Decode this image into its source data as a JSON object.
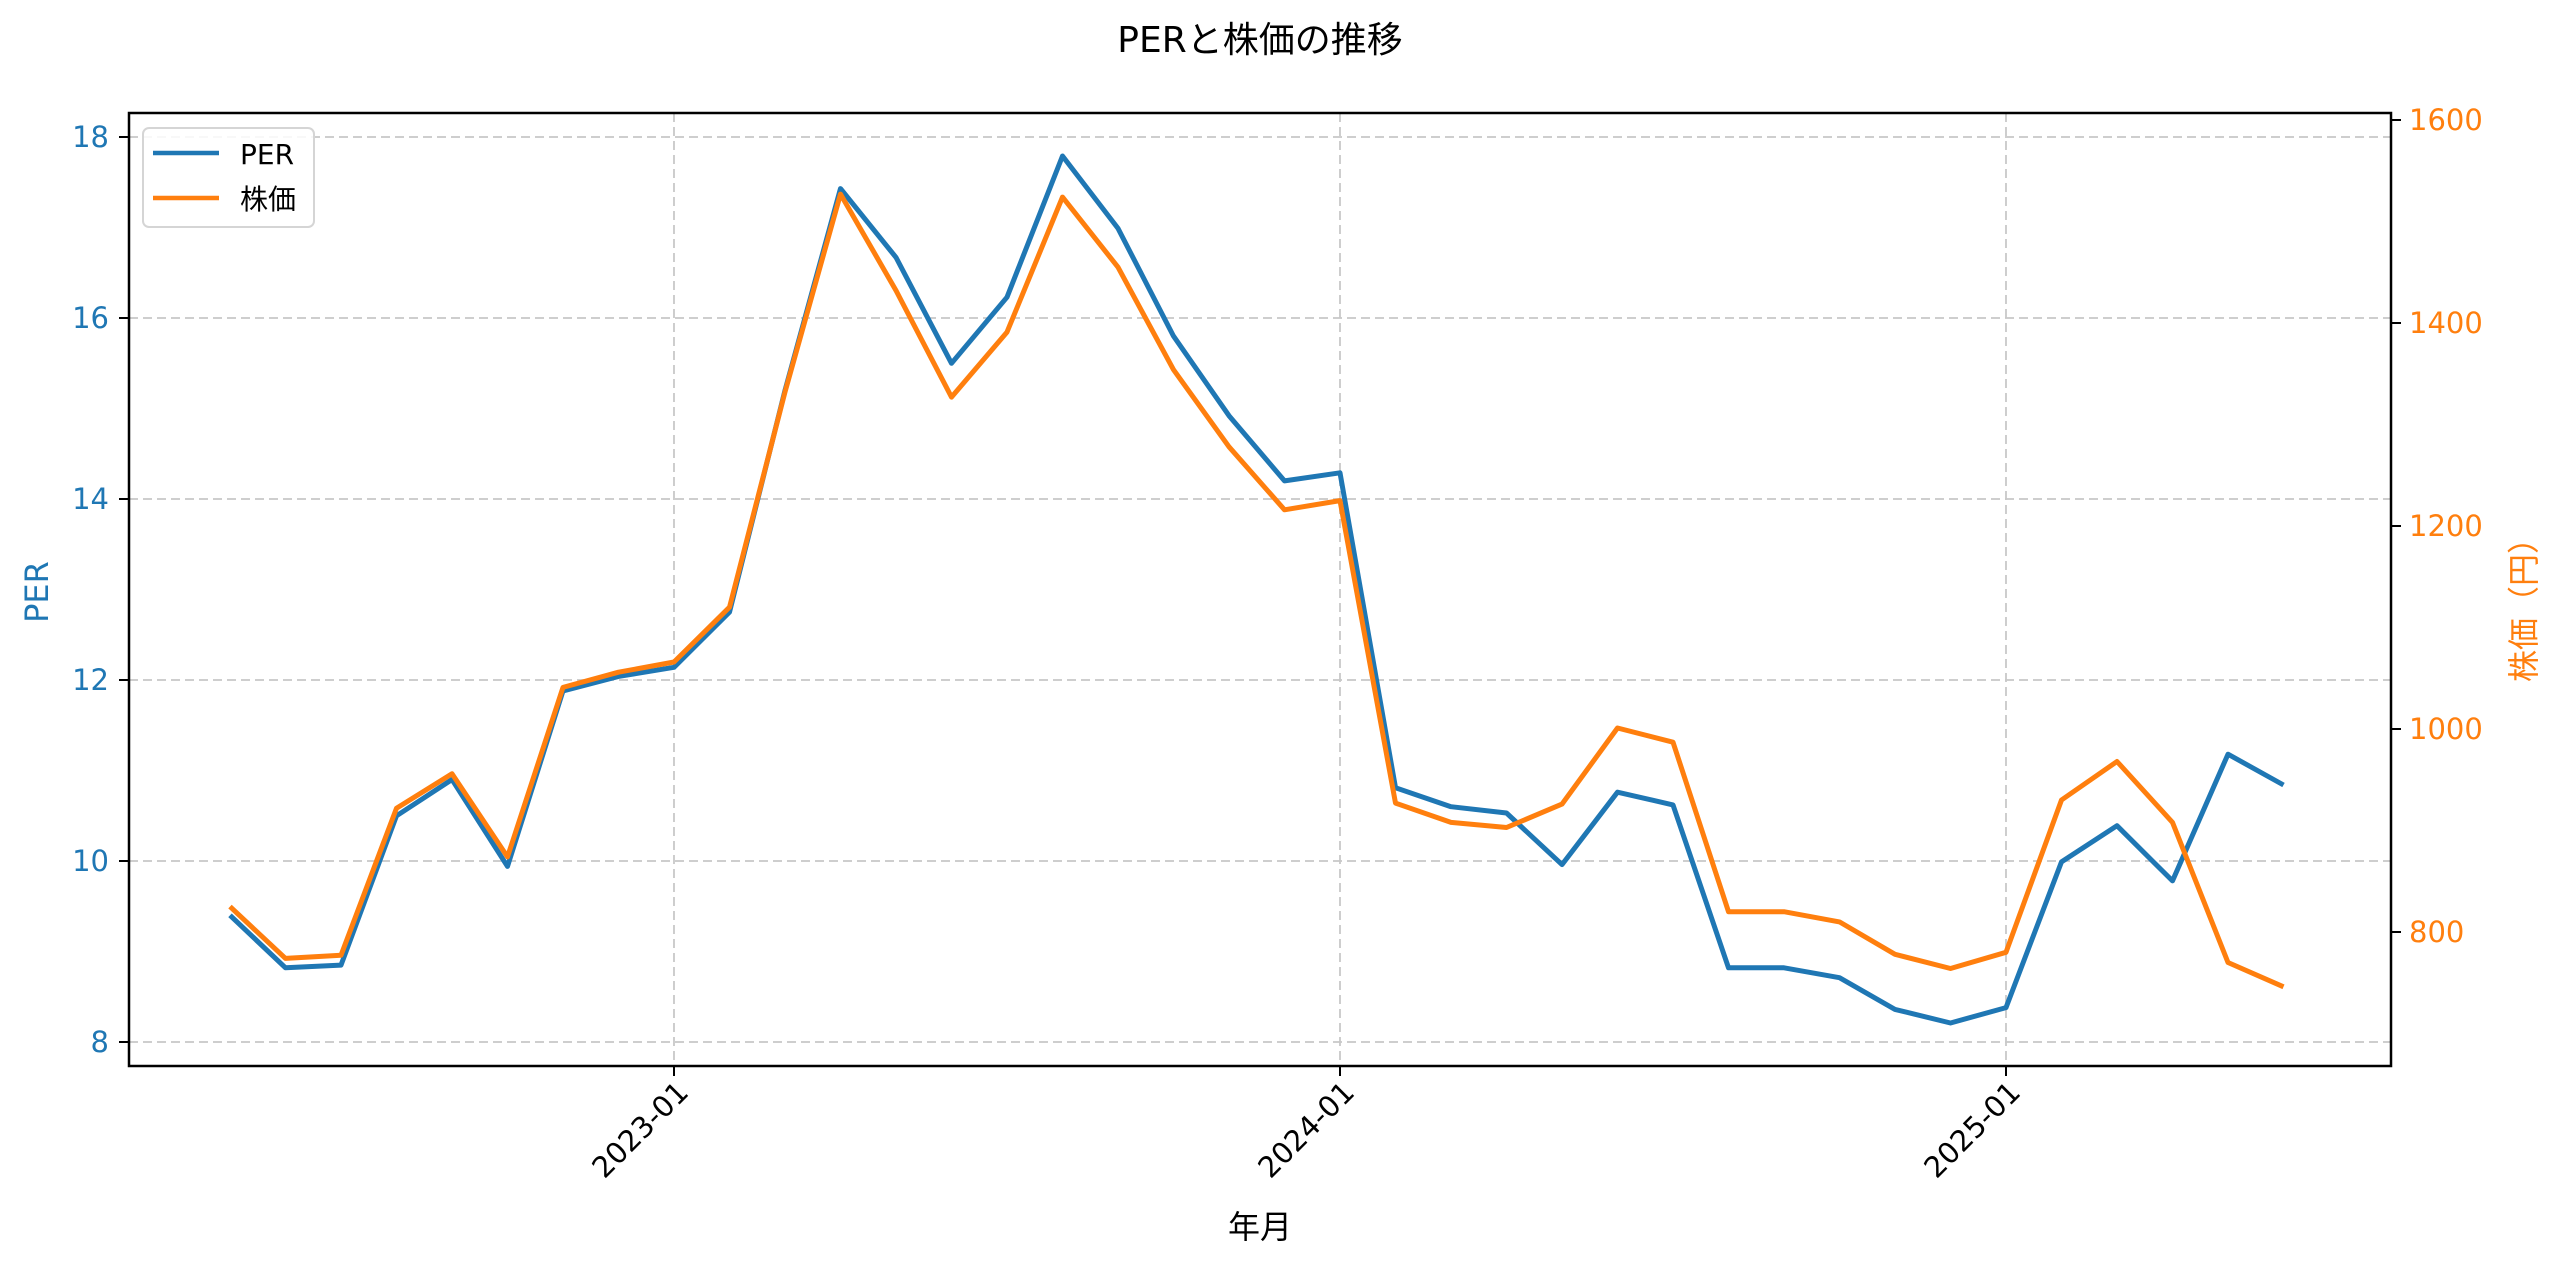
{
  "chart_data": {
    "type": "line",
    "title": "PERと株価の推移",
    "xlabel": "年月",
    "ylabel": "PER",
    "ylabel_right": "株価（円）",
    "x": [
      "2022-05",
      "2022-06",
      "2022-07",
      "2022-08",
      "2022-09",
      "2022-10",
      "2022-11",
      "2022-12",
      "2023-01",
      "2023-02",
      "2023-03",
      "2023-04",
      "2023-05",
      "2023-06",
      "2023-07",
      "2023-08",
      "2023-09",
      "2023-10",
      "2023-11",
      "2023-12",
      "2024-01",
      "2024-02",
      "2024-03",
      "2024-04",
      "2024-05",
      "2024-06",
      "2024-07",
      "2024-08",
      "2024-09",
      "2024-10",
      "2024-11",
      "2024-12",
      "2025-01",
      "2025-02",
      "2025-03",
      "2025-04",
      "2025-05",
      "2025-06"
    ],
    "x_ticks": [
      "2023-01",
      "2024-01",
      "2025-01"
    ],
    "series": [
      {
        "name": "PER",
        "axis": "left",
        "color": "#1f77b4",
        "values": [
          9.4,
          8.82,
          8.85,
          10.5,
          10.9,
          9.94,
          11.88,
          12.04,
          12.14,
          12.75,
          15.2,
          17.43,
          16.67,
          15.5,
          16.23,
          17.79,
          16.99,
          15.8,
          14.92,
          14.2,
          14.29,
          10.81,
          10.6,
          10.53,
          9.96,
          10.76,
          10.62,
          8.82,
          8.82,
          8.71,
          8.36,
          8.21,
          8.38,
          9.99,
          10.39,
          9.78,
          11.18,
          10.84
        ]
      },
      {
        "name": "株価",
        "axis": "right",
        "color": "#ff7f0e",
        "values": [
          825,
          774,
          777,
          922,
          956,
          874,
          1041,
          1056,
          1066,
          1120,
          1332,
          1527,
          1432,
          1327,
          1391,
          1524,
          1455,
          1354,
          1278,
          1216,
          1225,
          927,
          908,
          903,
          926,
          1001,
          987,
          820,
          820,
          810,
          778,
          764,
          780,
          930,
          968,
          908,
          770,
          746
        ]
      }
    ],
    "y_left": {
      "ticks": [
        8,
        10,
        12,
        14,
        16,
        18
      ],
      "range": [
        7.73,
        18.27
      ]
    },
    "y_right": {
      "ticks": [
        800,
        1000,
        1200,
        1400,
        1600
      ],
      "range": [
        667,
        1610
      ]
    },
    "grid": true,
    "legend_position": "upper left"
  },
  "legend": {
    "items": [
      {
        "label": "PER",
        "color": "#1f77b4"
      },
      {
        "label": "株価",
        "color": "#ff7f0e"
      }
    ]
  }
}
